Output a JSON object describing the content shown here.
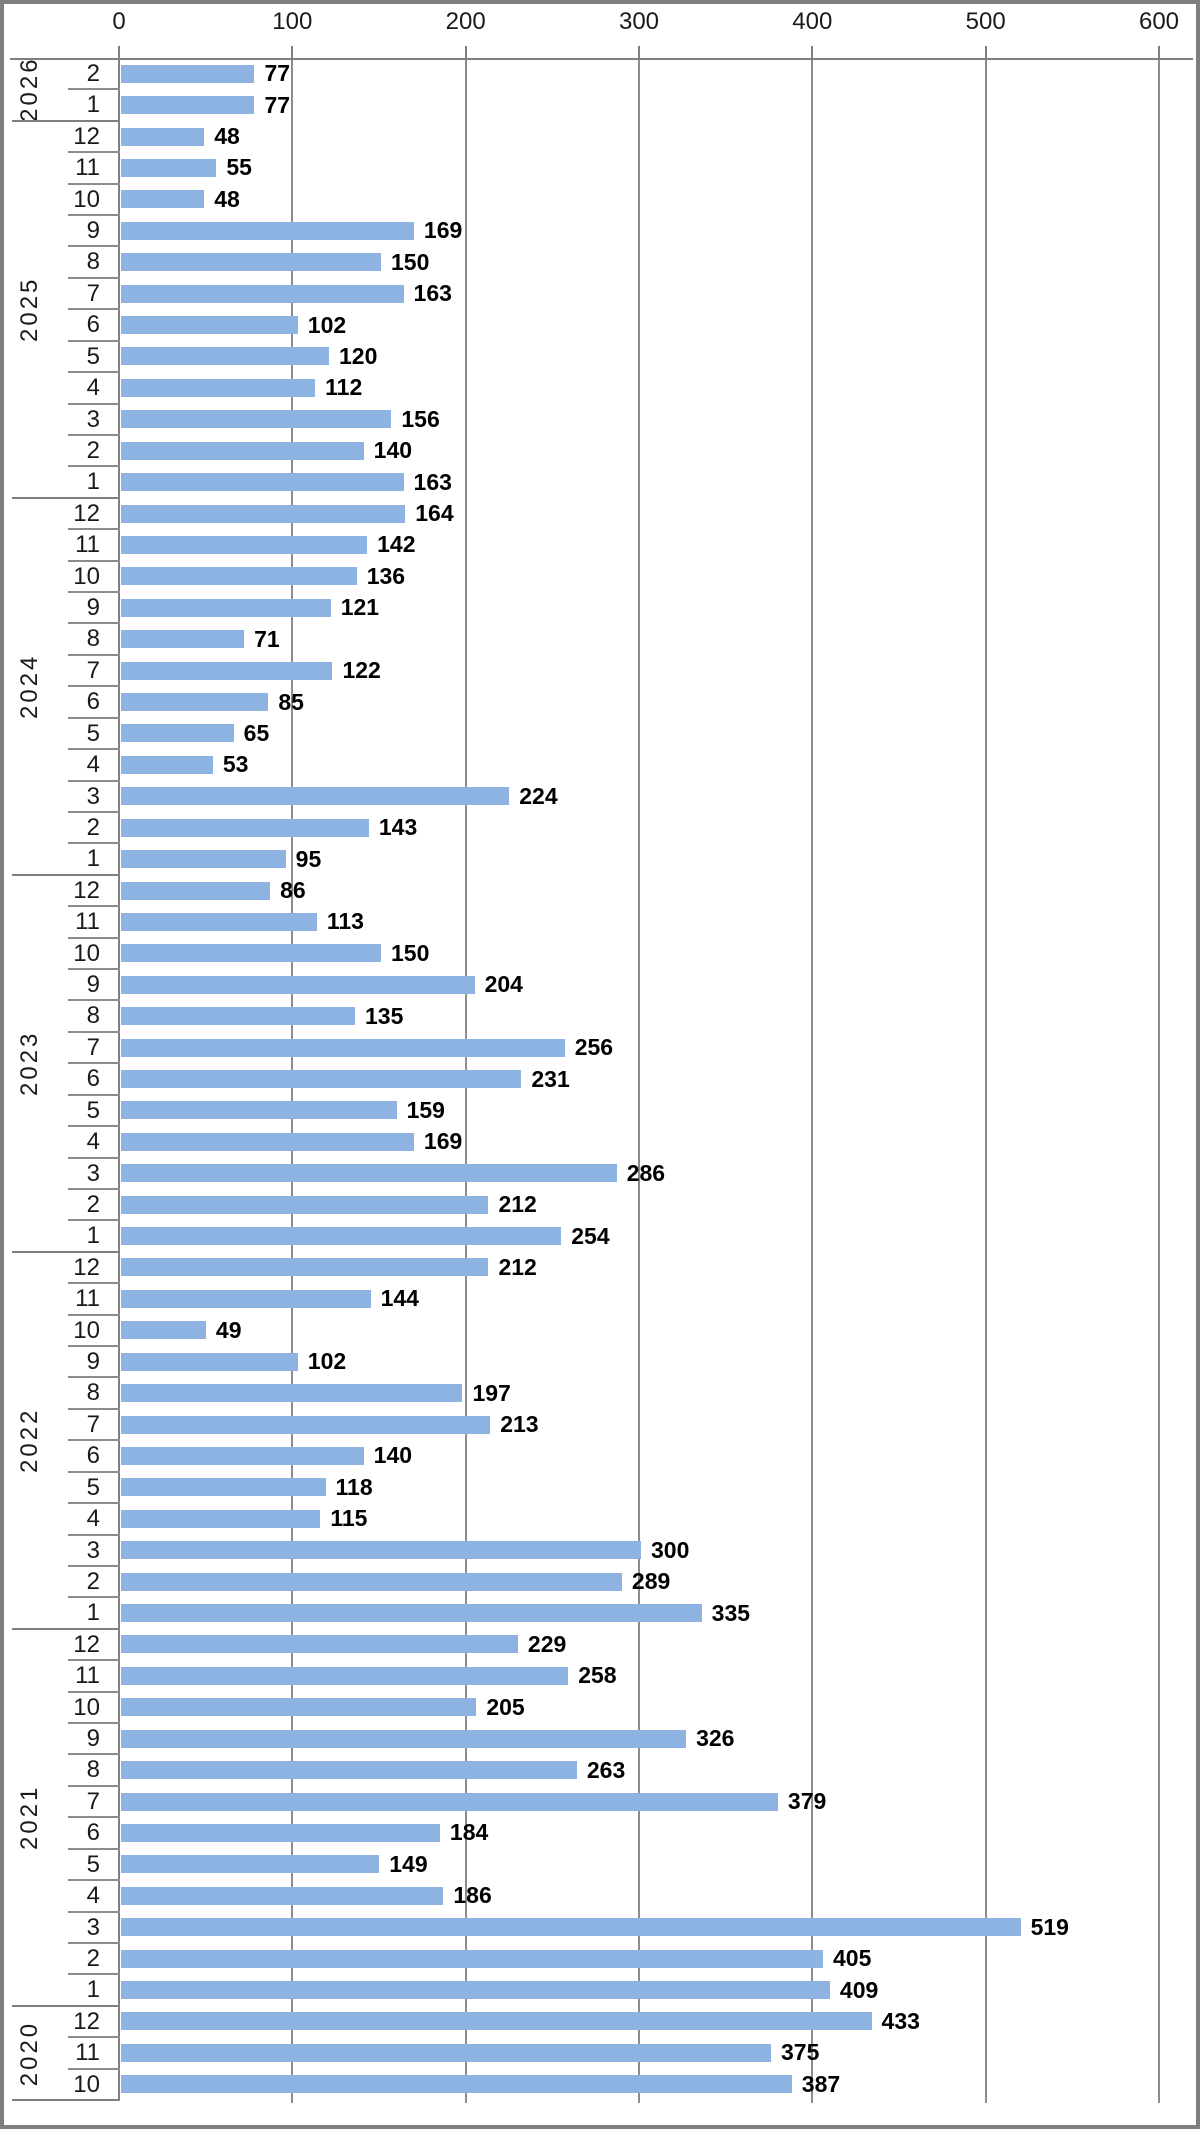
{
  "chart_data": {
    "type": "bar",
    "orientation": "horizontal",
    "title": "",
    "xlabel": "",
    "ylabel": "",
    "xlim": [
      0,
      600
    ],
    "x_ticks": [
      "0",
      "100",
      "200",
      "300",
      "400",
      "500",
      "600"
    ],
    "grid": "vertical-only",
    "legend": "none",
    "groups": [
      {
        "year": "2026",
        "months": [
          {
            "label": "2",
            "value": 77
          },
          {
            "label": "1",
            "value": 77
          }
        ]
      },
      {
        "year": "2025",
        "months": [
          {
            "label": "12",
            "value": 48
          },
          {
            "label": "11",
            "value": 55
          },
          {
            "label": "10",
            "value": 48
          },
          {
            "label": "9",
            "value": 169
          },
          {
            "label": "8",
            "value": 150
          },
          {
            "label": "7",
            "value": 163
          },
          {
            "label": "6",
            "value": 102
          },
          {
            "label": "5",
            "value": 120
          },
          {
            "label": "4",
            "value": 112
          },
          {
            "label": "3",
            "value": 156
          },
          {
            "label": "2",
            "value": 140
          },
          {
            "label": "1",
            "value": 163
          }
        ]
      },
      {
        "year": "2024",
        "months": [
          {
            "label": "12",
            "value": 164
          },
          {
            "label": "11",
            "value": 142
          },
          {
            "label": "10",
            "value": 136
          },
          {
            "label": "9",
            "value": 121
          },
          {
            "label": "8",
            "value": 71
          },
          {
            "label": "7",
            "value": 122
          },
          {
            "label": "6",
            "value": 85
          },
          {
            "label": "5",
            "value": 65
          },
          {
            "label": "4",
            "value": 53
          },
          {
            "label": "3",
            "value": 224
          },
          {
            "label": "2",
            "value": 143
          },
          {
            "label": "1",
            "value": 95
          }
        ]
      },
      {
        "year": "2023",
        "months": [
          {
            "label": "12",
            "value": 86
          },
          {
            "label": "11",
            "value": 113
          },
          {
            "label": "10",
            "value": 150
          },
          {
            "label": "9",
            "value": 204
          },
          {
            "label": "8",
            "value": 135
          },
          {
            "label": "7",
            "value": 256
          },
          {
            "label": "6",
            "value": 231
          },
          {
            "label": "5",
            "value": 159
          },
          {
            "label": "4",
            "value": 169
          },
          {
            "label": "3",
            "value": 286
          },
          {
            "label": "2",
            "value": 212
          },
          {
            "label": "1",
            "value": 254
          }
        ]
      },
      {
        "year": "2022",
        "months": [
          {
            "label": "12",
            "value": 212
          },
          {
            "label": "11",
            "value": 144
          },
          {
            "label": "10",
            "value": 49
          },
          {
            "label": "9",
            "value": 102
          },
          {
            "label": "8",
            "value": 197
          },
          {
            "label": "7",
            "value": 213
          },
          {
            "label": "6",
            "value": 140
          },
          {
            "label": "5",
            "value": 118
          },
          {
            "label": "4",
            "value": 115
          },
          {
            "label": "3",
            "value": 300
          },
          {
            "label": "2",
            "value": 289
          },
          {
            "label": "1",
            "value": 335
          }
        ]
      },
      {
        "year": "2021",
        "months": [
          {
            "label": "12",
            "value": 229
          },
          {
            "label": "11",
            "value": 258
          },
          {
            "label": "10",
            "value": 205
          },
          {
            "label": "9",
            "value": 326
          },
          {
            "label": "8",
            "value": 263
          },
          {
            "label": "7",
            "value": 379
          },
          {
            "label": "6",
            "value": 184
          },
          {
            "label": "5",
            "value": 149
          },
          {
            "label": "4",
            "value": 186
          },
          {
            "label": "3",
            "value": 519
          },
          {
            "label": "2",
            "value": 405
          },
          {
            "label": "1",
            "value": 409
          }
        ]
      },
      {
        "year": "2020",
        "months": [
          {
            "label": "12",
            "value": 433
          },
          {
            "label": "11",
            "value": 375
          },
          {
            "label": "10",
            "value": 387
          }
        ]
      }
    ]
  },
  "colors": {
    "bar": "#8db3e2",
    "gridline": "#8c8c8c",
    "axis_line": "#7f7f7f",
    "outer_border": "#7f7f7f",
    "text": "#1a1a1a",
    "value_text": "#000000",
    "background": "#ffffff"
  }
}
